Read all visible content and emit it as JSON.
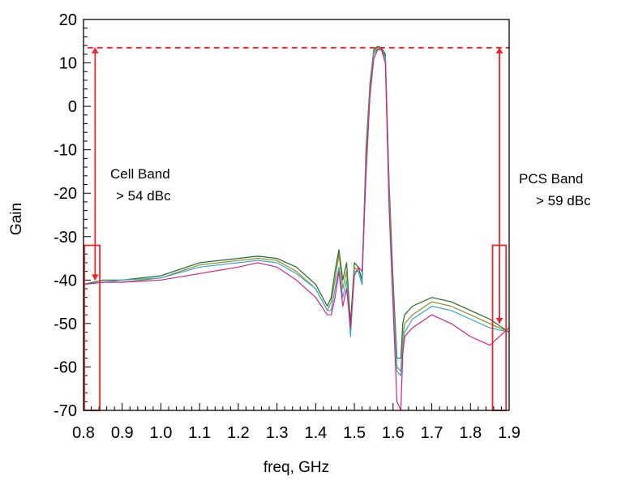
{
  "chart_data": {
    "type": "line",
    "title": "",
    "xlabel": "freq, GHz",
    "ylabel": "Gain",
    "xlim": [
      0.8,
      1.9
    ],
    "ylim": [
      -70,
      20
    ],
    "x_ticks": [
      "0.8",
      "0.9",
      "1.0",
      "1.1",
      "1.2",
      "1.3",
      "1.4",
      "1.5",
      "1.6",
      "1.7",
      "1.8",
      "1.9"
    ],
    "y_ticks": [
      "-70",
      "-60",
      "-50",
      "-40",
      "-30",
      "-20",
      "-10",
      "0",
      "10",
      "20"
    ],
    "grid": false,
    "reference_line": {
      "y": 13.5,
      "color": "#e8262b",
      "style": "dashed"
    },
    "annotations": [
      {
        "lines": [
          "Cell Band",
          "> 54 dBc"
        ],
        "x": 0.83,
        "from_y": 13.5,
        "to_y": -40
      },
      {
        "lines": [
          "PCS Band",
          "> 59 dBc"
        ],
        "x": 1.875,
        "from_y": 13.5,
        "to_y": -50
      }
    ],
    "highlight_boxes": [
      {
        "x": [
          0.8,
          0.84
        ],
        "y": [
          -70,
          -32
        ]
      },
      {
        "x": [
          1.855,
          1.89
        ],
        "y": [
          -70,
          -32
        ]
      }
    ],
    "series": [
      {
        "color": "#1f6b2a",
        "x": [
          0.8,
          0.85,
          0.9,
          1.0,
          1.1,
          1.2,
          1.25,
          1.3,
          1.35,
          1.4,
          1.43,
          1.44,
          1.45,
          1.46,
          1.47,
          1.48,
          1.49,
          1.5,
          1.51,
          1.52,
          1.53,
          1.54,
          1.55,
          1.56,
          1.57,
          1.58,
          1.59,
          1.6,
          1.61,
          1.62,
          1.625,
          1.63,
          1.65,
          1.7,
          1.75,
          1.8,
          1.85,
          1.9
        ],
        "y": [
          -41,
          -40,
          -40,
          -39,
          -36,
          -35,
          -34.5,
          -35,
          -37,
          -41,
          -46,
          -44,
          -38,
          -33,
          -40,
          -36,
          -50,
          -36,
          -37,
          -40,
          -10,
          5,
          13,
          13.8,
          13.5,
          12,
          -18,
          -40,
          -58,
          -58,
          -50,
          -48,
          -46,
          -44,
          -45,
          -47,
          -49,
          -52
        ]
      },
      {
        "color": "#8a8f2a",
        "x": [
          0.8,
          0.85,
          0.9,
          1.0,
          1.1,
          1.2,
          1.25,
          1.3,
          1.35,
          1.4,
          1.43,
          1.44,
          1.45,
          1.46,
          1.47,
          1.48,
          1.49,
          1.5,
          1.51,
          1.52,
          1.53,
          1.54,
          1.55,
          1.56,
          1.57,
          1.58,
          1.59,
          1.6,
          1.61,
          1.62,
          1.625,
          1.63,
          1.65,
          1.7,
          1.75,
          1.8,
          1.85,
          1.9
        ],
        "y": [
          -41,
          -40.5,
          -40.5,
          -39.5,
          -36.5,
          -35.5,
          -35,
          -35.5,
          -38,
          -42,
          -47,
          -45,
          -40,
          -34,
          -42,
          -38,
          -52,
          -37,
          -38,
          -41,
          -12,
          4,
          12.5,
          13.5,
          13.2,
          11.5,
          -20,
          -42,
          -60,
          -61,
          -53,
          -50,
          -48,
          -45,
          -46,
          -48,
          -50,
          -52
        ]
      },
      {
        "color": "#36a8c8",
        "x": [
          0.8,
          0.85,
          0.9,
          1.0,
          1.1,
          1.2,
          1.25,
          1.3,
          1.35,
          1.4,
          1.43,
          1.44,
          1.45,
          1.46,
          1.47,
          1.48,
          1.49,
          1.5,
          1.51,
          1.52,
          1.53,
          1.54,
          1.55,
          1.56,
          1.57,
          1.58,
          1.59,
          1.6,
          1.61,
          1.62,
          1.625,
          1.63,
          1.65,
          1.7,
          1.75,
          1.8,
          1.85,
          1.9
        ],
        "y": [
          -41,
          -40.5,
          -40,
          -39.5,
          -37,
          -36,
          -35.5,
          -36,
          -38.5,
          -42,
          -47,
          -47,
          -42,
          -37,
          -44,
          -40,
          -53,
          -38,
          -38,
          -41,
          -14,
          3,
          12,
          13.2,
          13,
          11,
          -22,
          -44,
          -61,
          -62,
          -55,
          -52,
          -49,
          -46,
          -47,
          -49,
          -51,
          -52
        ]
      },
      {
        "color": "#d0238a",
        "x": [
          0.8,
          0.85,
          0.9,
          1.0,
          1.1,
          1.2,
          1.25,
          1.3,
          1.35,
          1.4,
          1.43,
          1.44,
          1.45,
          1.46,
          1.47,
          1.48,
          1.49,
          1.5,
          1.51,
          1.52,
          1.53,
          1.54,
          1.55,
          1.56,
          1.57,
          1.58,
          1.59,
          1.6,
          1.61,
          1.62,
          1.625,
          1.63,
          1.65,
          1.7,
          1.75,
          1.8,
          1.85,
          1.9
        ],
        "y": [
          -41,
          -40.5,
          -40.5,
          -40,
          -38.5,
          -37,
          -36,
          -37,
          -40,
          -44,
          -48,
          -48,
          -44,
          -38,
          -46,
          -42,
          -51,
          -39,
          -37,
          -38,
          -16,
          2,
          11,
          13,
          13,
          10,
          -24,
          -46,
          -68,
          -70,
          -57,
          -53,
          -51,
          -48,
          -50,
          -53,
          -55,
          -51
        ]
      }
    ]
  }
}
